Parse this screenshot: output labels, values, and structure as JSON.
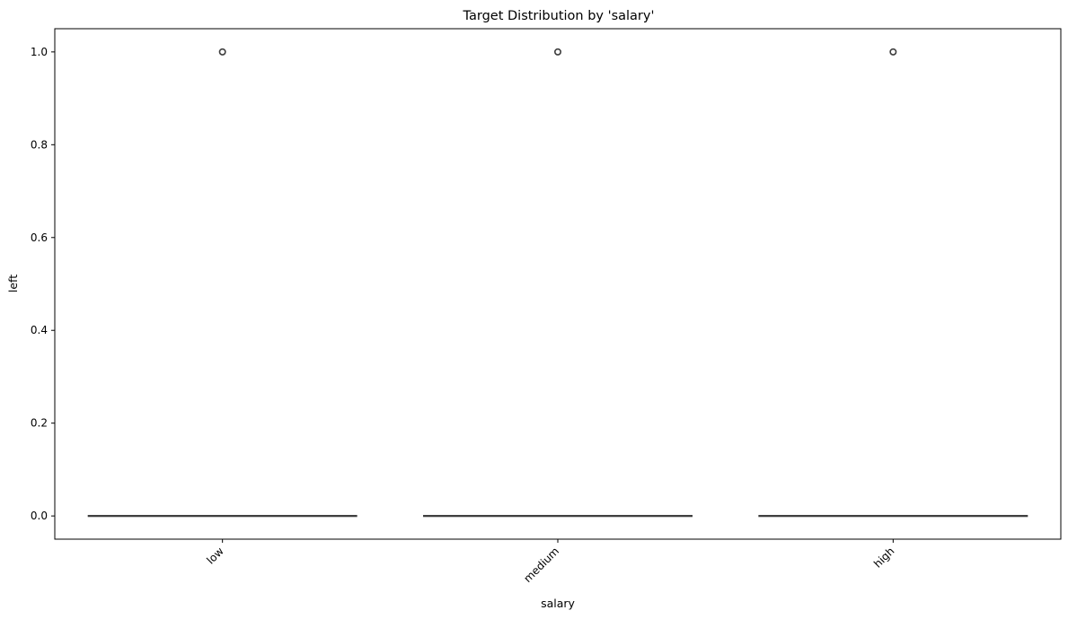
{
  "chart_data": {
    "type": "box",
    "title": "Target Distribution by 'salary'",
    "xlabel": "salary",
    "ylabel": "left",
    "categories": [
      "low",
      "medium",
      "high"
    ],
    "ylim": [
      -0.05,
      1.05
    ],
    "yticks": [
      0.0,
      0.2,
      0.4,
      0.6,
      0.8,
      1.0
    ],
    "ytick_labels": [
      "0.0",
      "0.2",
      "0.4",
      "0.6",
      "0.8",
      "1.0"
    ],
    "boxes": [
      {
        "category": "low",
        "q1": 0,
        "median": 0,
        "q3": 0,
        "whisker_low": 0,
        "whisker_high": 0,
        "outliers": [
          1.0
        ]
      },
      {
        "category": "medium",
        "q1": 0,
        "median": 0,
        "q3": 0,
        "whisker_low": 0,
        "whisker_high": 0,
        "outliers": [
          1.0
        ]
      },
      {
        "category": "high",
        "q1": 0,
        "median": 0,
        "q3": 0,
        "whisker_low": 0,
        "whisker_high": 0,
        "outliers": [
          1.0
        ]
      }
    ],
    "grid": false,
    "colors": {
      "box_line": "#3f3f3f",
      "axis": "#000000"
    }
  }
}
